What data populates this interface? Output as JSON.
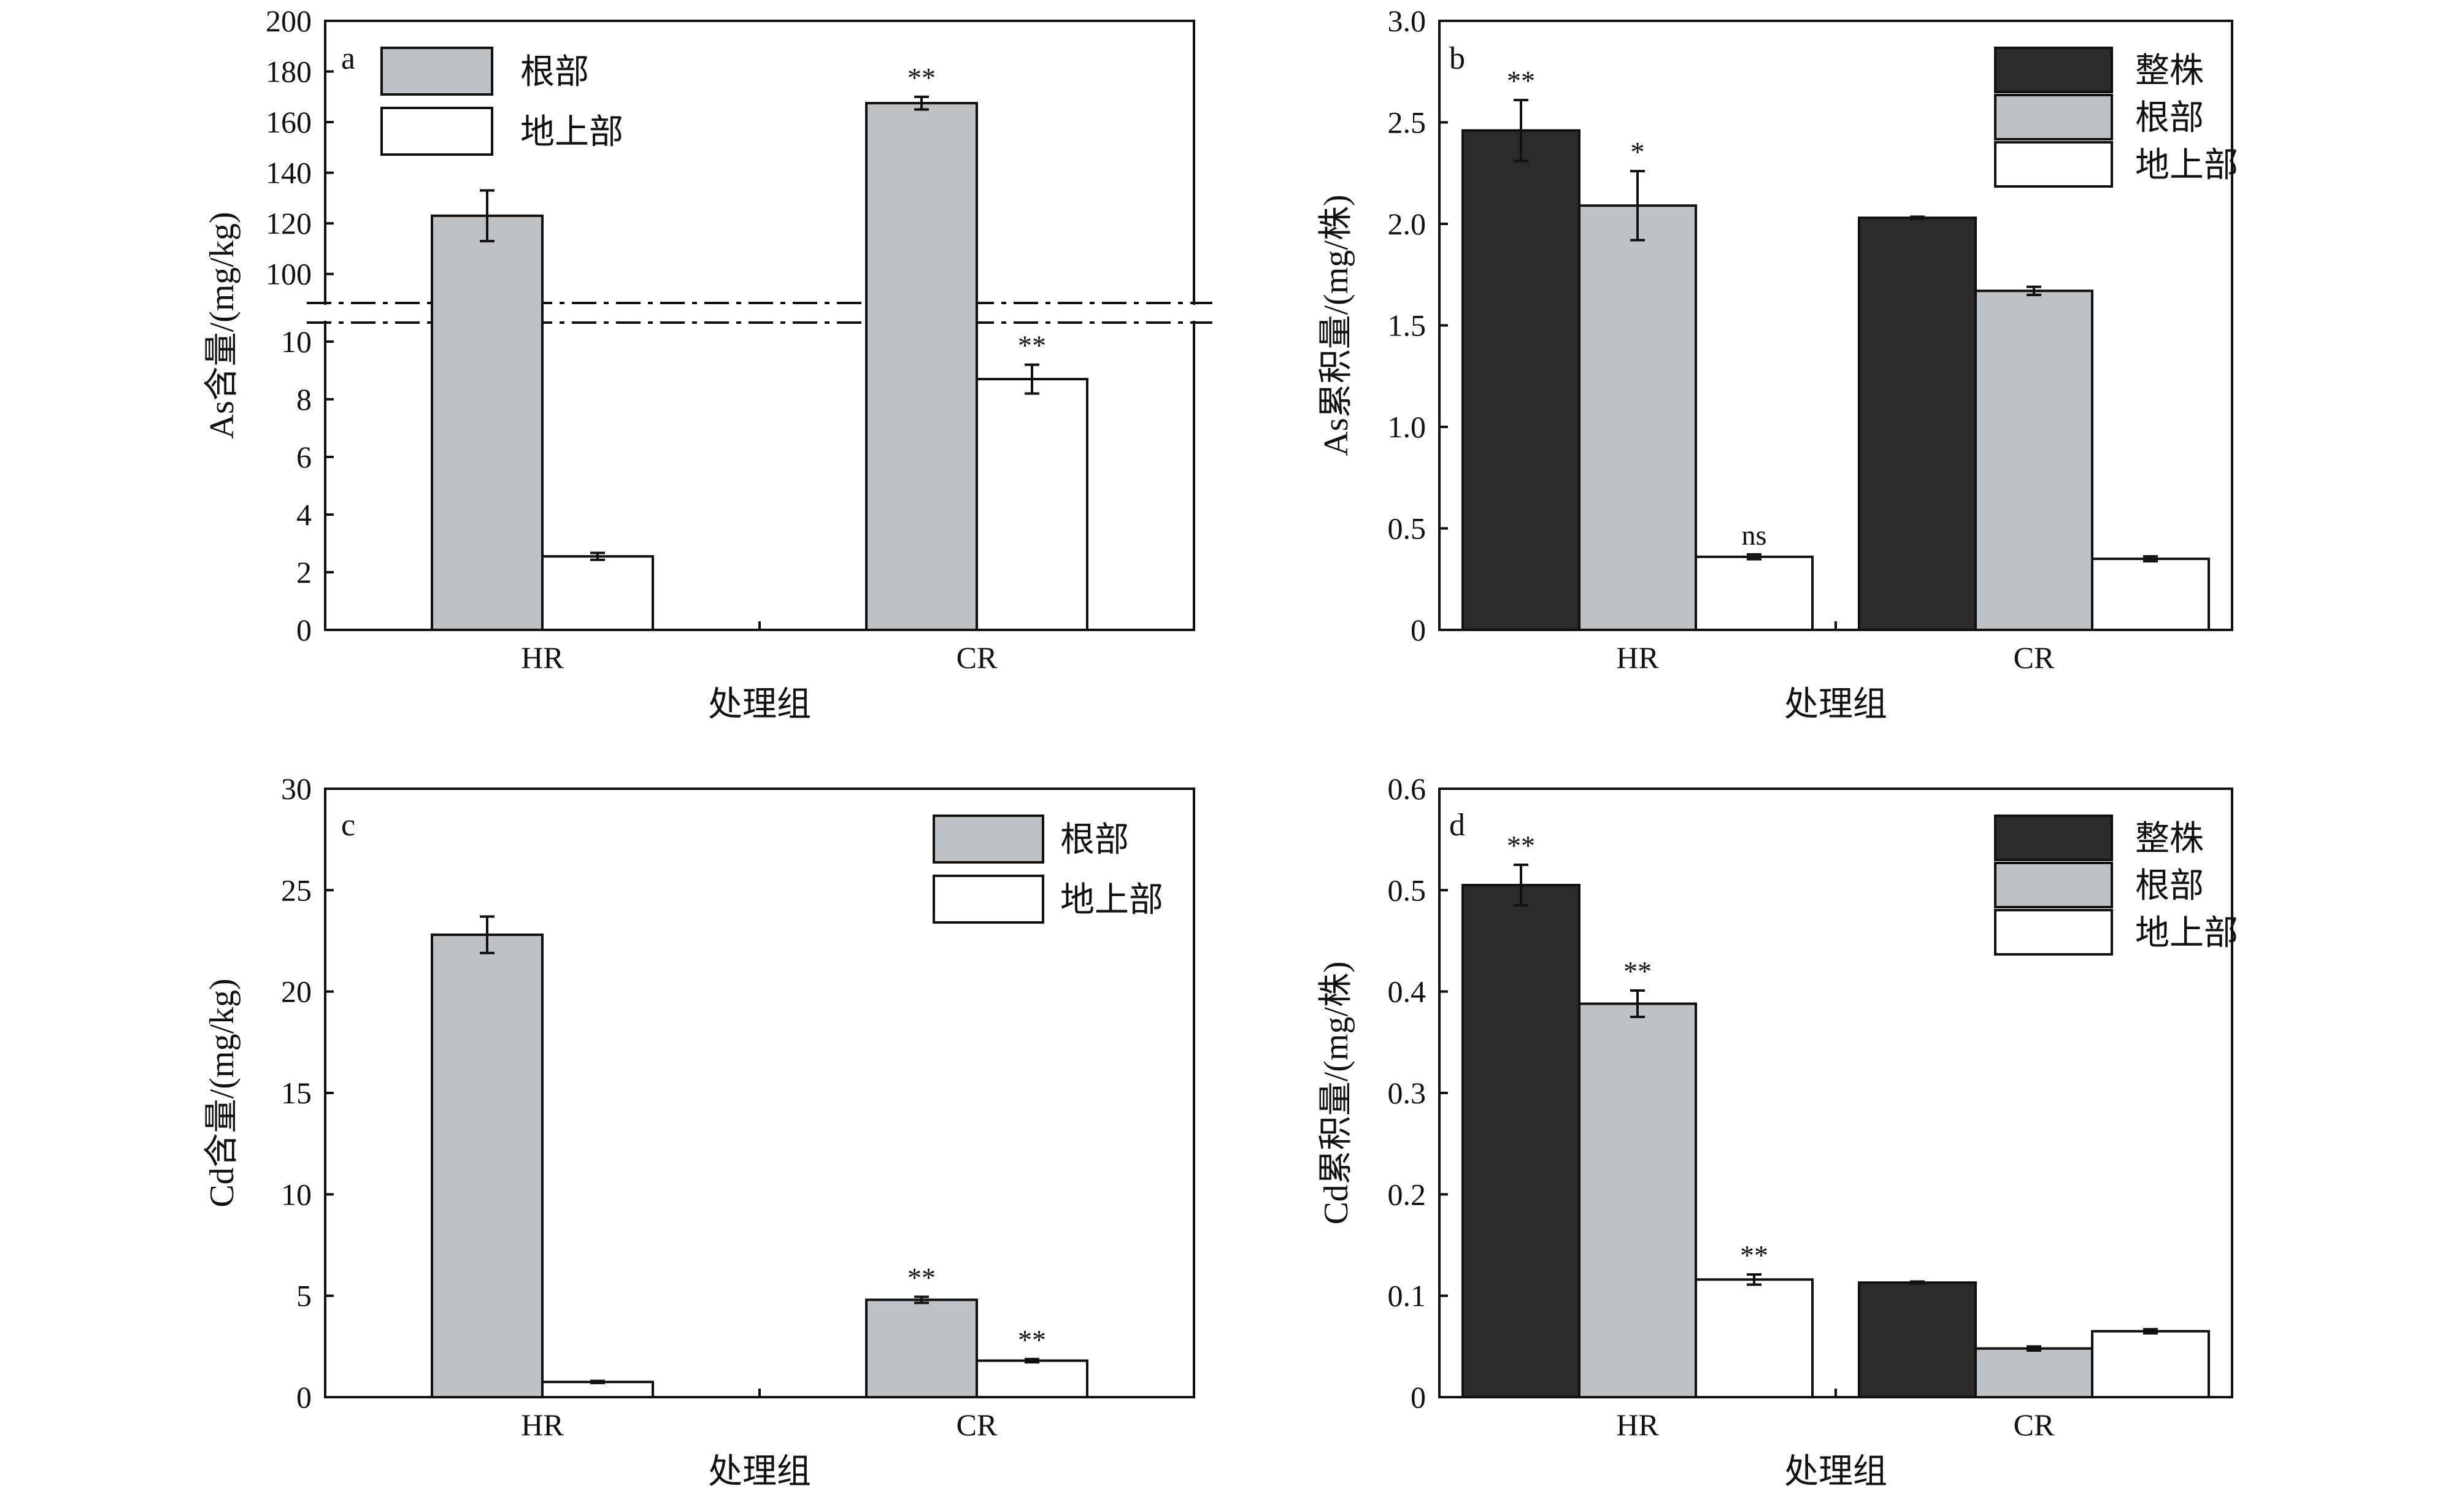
{
  "colors": {
    "whole_plant": "#2a2a2a",
    "root": "#c0c1c3",
    "shoot": "#ffffff",
    "stroke": "#111111"
  },
  "chart_data": [
    {
      "panel": "a",
      "type": "bar",
      "categories": [
        "HR",
        "CR"
      ],
      "xlabel": "处理组",
      "ylabel": "As含量/(mg/kg)",
      "y_axis_break": true,
      "y_lower_ylim": [
        0,
        11
      ],
      "y_lower_ticks": [
        "0",
        "2",
        "4",
        "6",
        "8",
        "10"
      ],
      "y_upper_ylim": [
        90,
        200
      ],
      "y_upper_ticks": [
        "100",
        "120",
        "140",
        "160",
        "180",
        "200"
      ],
      "legend_position": "top-left",
      "series": [
        {
          "name": "根部",
          "color_key": "root",
          "values": [
            123,
            167.5
          ],
          "errors": [
            10,
            2.5
          ],
          "sig": [
            "",
            "**"
          ]
        },
        {
          "name": "地上部",
          "color_key": "shoot",
          "values": [
            2.55,
            8.7
          ],
          "errors": [
            0.12,
            0.5
          ],
          "sig": [
            "",
            "**"
          ]
        }
      ]
    },
    {
      "panel": "b",
      "type": "bar",
      "categories": [
        "HR",
        "CR"
      ],
      "xlabel": "处理组",
      "ylabel": "As累积量/(mg/株)",
      "ylim": [
        0,
        3.0
      ],
      "yticks": [
        "0",
        "0.5",
        "1.0",
        "1.5",
        "2.0",
        "2.5",
        "3.0"
      ],
      "legend_position": "top-right",
      "series": [
        {
          "name": "整株",
          "color_key": "whole_plant",
          "values": [
            2.46,
            2.03
          ],
          "errors": [
            0.15,
            0.005
          ],
          "sig": [
            "**",
            ""
          ]
        },
        {
          "name": "根部",
          "color_key": "root",
          "values": [
            2.09,
            1.67
          ],
          "errors": [
            0.17,
            0.02
          ],
          "sig": [
            "*",
            ""
          ]
        },
        {
          "name": "地上部",
          "color_key": "shoot",
          "values": [
            0.36,
            0.35
          ],
          "errors": [
            0.012,
            0.012
          ],
          "sig": [
            "ns",
            ""
          ]
        }
      ]
    },
    {
      "panel": "c",
      "type": "bar",
      "categories": [
        "HR",
        "CR"
      ],
      "xlabel": "处理组",
      "ylabel": "Cd含量/(mg/kg)",
      "ylim": [
        0,
        30
      ],
      "yticks": [
        "0",
        "5",
        "10",
        "15",
        "20",
        "25",
        "30"
      ],
      "legend_position": "top-right",
      "series": [
        {
          "name": "根部",
          "color_key": "root",
          "values": [
            22.8,
            4.8
          ],
          "errors": [
            0.9,
            0.15
          ],
          "sig": [
            "",
            "**"
          ]
        },
        {
          "name": "地上部",
          "color_key": "shoot",
          "values": [
            0.75,
            1.8
          ],
          "errors": [
            0.05,
            0.08
          ],
          "sig": [
            "",
            "**"
          ]
        }
      ]
    },
    {
      "panel": "d",
      "type": "bar",
      "categories": [
        "HR",
        "CR"
      ],
      "xlabel": "处理组",
      "ylabel": "Cd累积量/(mg/株)",
      "ylim": [
        0,
        0.6
      ],
      "yticks": [
        "0",
        "0.1",
        "0.2",
        "0.3",
        "0.4",
        "0.5",
        "0.6"
      ],
      "legend_position": "top-right",
      "series": [
        {
          "name": "整株",
          "color_key": "whole_plant",
          "values": [
            0.505,
            0.113
          ],
          "errors": [
            0.02,
            0.001
          ],
          "sig": [
            "**",
            ""
          ]
        },
        {
          "name": "根部",
          "color_key": "root",
          "values": [
            0.388,
            0.048
          ],
          "errors": [
            0.013,
            0.002
          ],
          "sig": [
            "**",
            ""
          ]
        },
        {
          "name": "地上部",
          "color_key": "shoot",
          "values": [
            0.116,
            0.065
          ],
          "errors": [
            0.005,
            0.002
          ],
          "sig": [
            "**",
            ""
          ]
        }
      ]
    }
  ]
}
